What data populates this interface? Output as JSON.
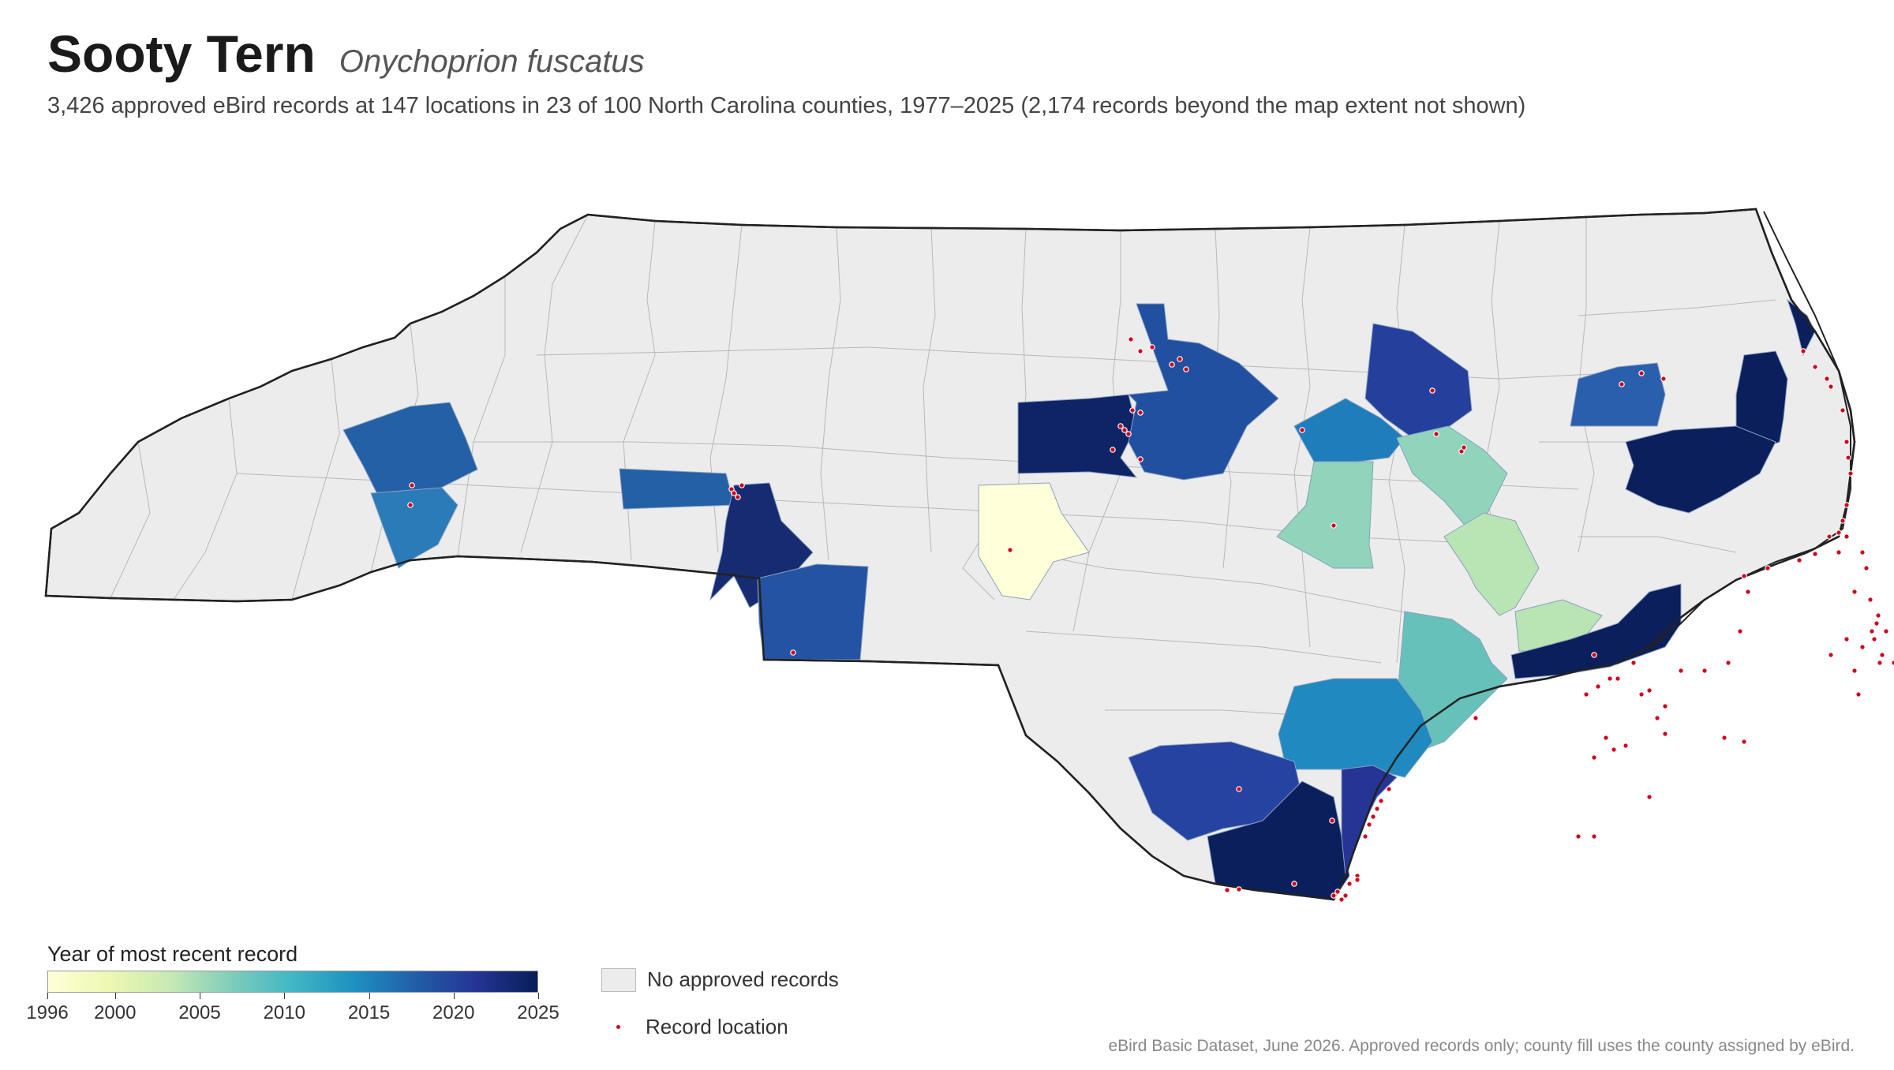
{
  "title": "Sooty Tern",
  "scientific_name": "Onychoprion fuscatus",
  "subtitle": "3,426 approved eBird records at 147 locations in 23 of 100 North Carolina counties, 1977–2025 (2,174 records beyond the map extent not shown)",
  "legend": {
    "title": "Year of most recent record",
    "min_year": 1996,
    "max_year": 2025,
    "ticks": [
      "1996",
      "2000",
      "2005",
      "2010",
      "2015",
      "2020",
      "2025"
    ],
    "no_records_label": "No approved records",
    "record_label": "Record location"
  },
  "colors": {
    "no_records": "#ececec",
    "record_dot": "#d0021b",
    "scale": [
      "#ffffd9",
      "#edf8b1",
      "#c7e9b4",
      "#7fcdbb",
      "#41b6c4",
      "#1d91c0",
      "#225ea8",
      "#253494",
      "#081d58"
    ]
  },
  "source": "eBird Basic Dataset, June 2026. Approved records only; county fill uses the county assigned by eBird."
}
